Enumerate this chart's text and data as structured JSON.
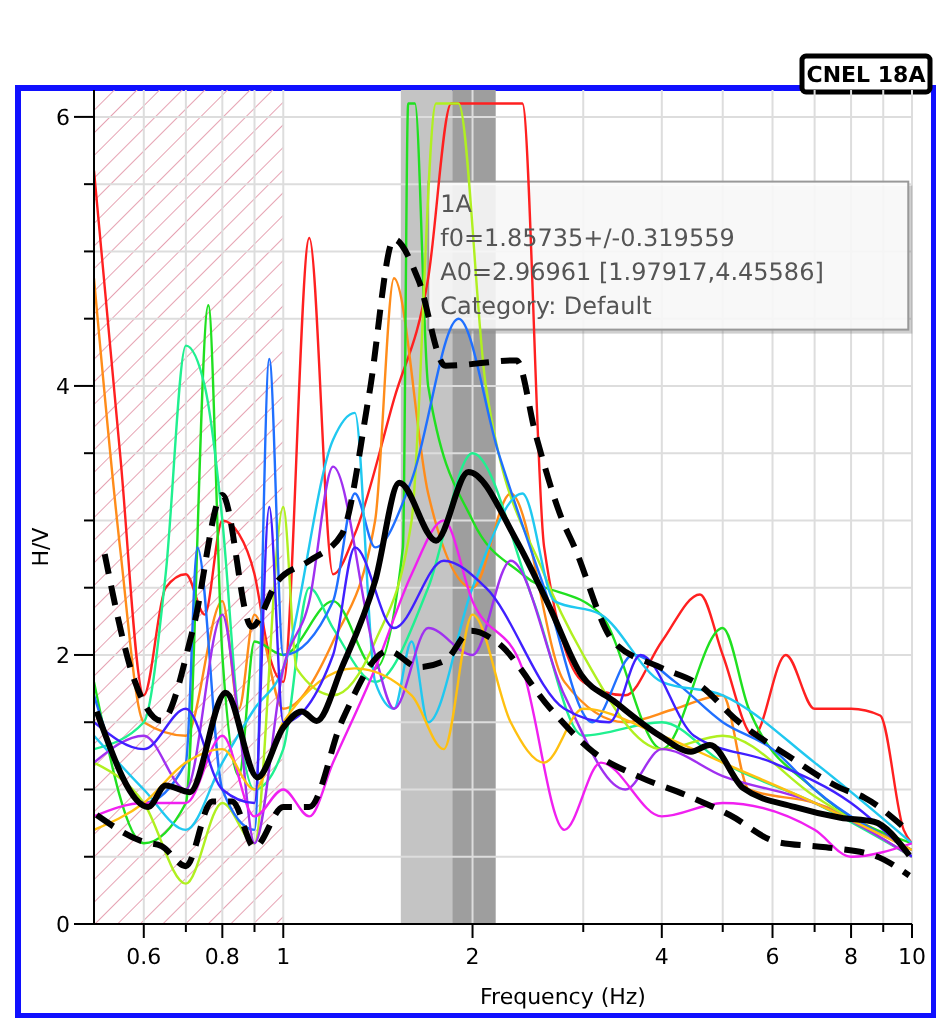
{
  "chart_data": {
    "type": "line",
    "title": "CNEL 18A",
    "xlabel": "Frequency (Hz)",
    "ylabel": "H/V",
    "log": "x",
    "grid": true,
    "xlim": [
      0.5,
      10
    ],
    "ylim": [
      0,
      6.2
    ],
    "xticks": [
      {
        "value": 0.6,
        "label": "0.6"
      },
      {
        "value": 0.7,
        "label": null
      },
      {
        "value": 0.8,
        "label": "0.8"
      },
      {
        "value": 0.9,
        "label": null
      },
      1,
      2,
      {
        "value": 3,
        "label": null
      },
      4,
      {
        "value": 5,
        "label": null
      },
      6,
      {
        "value": 7,
        "label": null
      },
      8,
      {
        "value": 9,
        "label": null
      },
      10
    ],
    "yticks": [
      0,
      {
        "value": 0.5,
        "label": null
      },
      {
        "value": 1,
        "label": null
      },
      {
        "value": 1.5,
        "label": null
      },
      2,
      {
        "value": 2.5,
        "label": null
      },
      {
        "value": 3,
        "label": null
      },
      {
        "value": 3.5,
        "label": null
      },
      4,
      {
        "value": 4.5,
        "label": null
      },
      {
        "value": 5,
        "label": null
      },
      {
        "value": 5.5,
        "label": null
      },
      6
    ],
    "bands": [
      {
        "axis": "x",
        "from": 0.5,
        "to": 1,
        "color": "#e6a3b3",
        "label": null
      },
      {
        "axis": "x",
        "from": 1.538,
        "to": 1.857,
        "color": "#c4c4c4",
        "label": null
      },
      {
        "axis": "x",
        "from": 1.857,
        "to": 2.177,
        "color": "#9e9e9e",
        "label": null
      }
    ],
    "annotations": [
      {
        "text": "1A",
        "x": 1.857,
        "y": 5.4
      },
      "f0=1.85735+/-0.319559",
      "A0=2.96961 [1.97917,4.45586]",
      "Category: Default"
    ],
    "series": [
      {
        "color": "#ff2020",
        "x": [
          0.5,
          0.55,
          0.6,
          0.65,
          0.7,
          0.75,
          0.8,
          0.85,
          0.9,
          0.95,
          1.0,
          1.1,
          1.2,
          1.3,
          1.5,
          1.7,
          1.85,
          2.4,
          2.6,
          3.0,
          3.5,
          4.0,
          4.6,
          5.0,
          5.6,
          6.3,
          7.0,
          8.0,
          8.9,
          9.7,
          10
        ],
        "values": [
          5.6,
          3.5,
          1.7,
          2.5,
          2.6,
          2.3,
          3.0,
          2.9,
          2.6,
          2.0,
          1.8,
          5.1,
          2.6,
          2.9,
          3.9,
          4.8,
          6.1,
          6.1,
          2.8,
          1.8,
          1.7,
          2.1,
          2.45,
          2.0,
          1.4,
          2.0,
          1.6,
          1.6,
          1.55,
          0.7,
          0.6
        ]
      },
      {
        "color": "#ff8c1a",
        "x": [
          0.5,
          0.55,
          0.6,
          0.7,
          0.8,
          0.85,
          0.9,
          1.0,
          1.2,
          1.4,
          1.5,
          1.7,
          2.0,
          2.3,
          2.8,
          3.5,
          4.2,
          5.0,
          5.5,
          7,
          10
        ],
        "values": [
          4.8,
          2.8,
          1.5,
          1.4,
          2.4,
          1.6,
          2.3,
          1.6,
          2.1,
          3.0,
          4.8,
          3.2,
          2.5,
          3.2,
          1.8,
          1.5,
          1.6,
          1.7,
          1.0,
          0.9,
          0.55
        ]
      },
      {
        "color": "#20e020",
        "x": [
          0.5,
          0.6,
          0.7,
          0.76,
          0.8,
          0.85,
          0.9,
          1.0,
          1.2,
          1.4,
          1.55,
          1.58,
          1.62,
          1.7,
          2.0,
          2.4,
          3.2,
          4,
          5,
          5.5,
          7,
          10
        ],
        "values": [
          1.8,
          0.6,
          0.9,
          4.6,
          2.0,
          1.1,
          2.1,
          2.0,
          2.4,
          1.9,
          2.8,
          6.1,
          6.1,
          4.0,
          3.0,
          2.6,
          2.3,
          1.3,
          2.2,
          1.6,
          1.0,
          0.6
        ]
      },
      {
        "color": "#20f090",
        "x": [
          0.5,
          0.6,
          0.65,
          0.7,
          0.75,
          0.8,
          0.85,
          0.9,
          1.0,
          1.1,
          1.2,
          1.4,
          1.7,
          2.0,
          2.5,
          3,
          4,
          5,
          7,
          10
        ],
        "values": [
          1.3,
          1.5,
          2.6,
          4.3,
          4.0,
          3.0,
          1.5,
          1.0,
          1.3,
          2.5,
          2.2,
          1.8,
          2.5,
          3.5,
          2.4,
          1.4,
          1.5,
          1.2,
          0.9,
          0.5
        ]
      },
      {
        "color": "#b0f020",
        "x": [
          0.5,
          0.6,
          0.7,
          0.8,
          0.9,
          1.0,
          1.05,
          1.2,
          1.4,
          1.6,
          1.75,
          1.9,
          2.1,
          2.6,
          3.0,
          4,
          5,
          7,
          10
        ],
        "values": [
          1.2,
          0.9,
          0.3,
          0.9,
          0.6,
          3.1,
          1.9,
          1.7,
          2.1,
          3.0,
          6.1,
          6.1,
          4.0,
          2.6,
          2.0,
          1.3,
          1.4,
          0.95,
          0.5
        ]
      },
      {
        "color": "#2070ff",
        "x": [
          0.5,
          0.6,
          0.7,
          0.73,
          0.8,
          0.9,
          0.95,
          1.0,
          1.2,
          1.3,
          1.4,
          1.6,
          1.9,
          2.2,
          2.6,
          3.1,
          3.6,
          4.2,
          5,
          6,
          7,
          10
        ],
        "values": [
          1.7,
          0.9,
          1.2,
          2.8,
          1.0,
          0.7,
          4.2,
          2.0,
          2.4,
          3.2,
          2.8,
          3.3,
          4.5,
          3.5,
          2.5,
          1.5,
          2.0,
          1.8,
          1.5,
          1.3,
          1.0,
          0.55
        ]
      },
      {
        "color": "#20c8f0",
        "x": [
          0.5,
          0.6,
          0.7,
          0.8,
          0.9,
          1.0,
          1.2,
          1.3,
          1.4,
          1.5,
          1.6,
          1.7,
          2.0,
          2.4,
          2.7,
          3.2,
          4,
          5,
          7,
          10
        ],
        "values": [
          1.4,
          1.0,
          0.7,
          1.2,
          1.6,
          1.9,
          3.6,
          3.8,
          1.8,
          1.6,
          2.1,
          1.5,
          2.5,
          3.2,
          2.4,
          2.3,
          1.8,
          1.7,
          1.2,
          0.6
        ]
      },
      {
        "color": "#a030f0",
        "x": [
          0.5,
          0.6,
          0.7,
          0.8,
          0.85,
          0.9,
          1.0,
          1.1,
          1.2,
          1.4,
          1.5,
          1.7,
          2.0,
          2.3,
          2.8,
          3.5,
          4,
          5,
          7,
          10
        ],
        "values": [
          1.2,
          1.4,
          1.0,
          2.3,
          1.5,
          0.6,
          1.9,
          2.4,
          3.4,
          2.0,
          1.6,
          2.2,
          2.0,
          2.7,
          1.7,
          1.0,
          1.3,
          1.1,
          0.9,
          0.5
        ]
      },
      {
        "color": "#f020f0",
        "x": [
          0.5,
          0.6,
          0.7,
          0.8,
          0.9,
          1.0,
          1.1,
          1.2,
          1.4,
          1.6,
          1.8,
          2.0,
          2.4,
          2.8,
          3.2,
          4,
          5,
          7,
          8,
          10
        ],
        "values": [
          0.8,
          0.9,
          0.9,
          1.4,
          0.8,
          1.0,
          0.8,
          1.2,
          1.9,
          2.6,
          3.0,
          2.4,
          1.9,
          0.7,
          1.2,
          0.8,
          0.9,
          0.7,
          0.5,
          0.6
        ]
      },
      {
        "color": "#ffc010",
        "x": [
          0.5,
          0.6,
          0.7,
          0.8,
          0.9,
          1.0,
          1.3,
          1.6,
          1.8,
          2.0,
          2.3,
          2.6,
          3.0,
          4,
          5,
          7,
          10
        ],
        "values": [
          0.7,
          0.9,
          1.2,
          1.3,
          1.0,
          1.5,
          1.9,
          1.7,
          1.3,
          2.3,
          1.5,
          1.2,
          1.6,
          1.4,
          1.2,
          0.9,
          0.55
        ]
      },
      {
        "color": "#4020ff",
        "x": [
          0.5,
          0.6,
          0.7,
          0.8,
          0.9,
          0.95,
          1.0,
          1.2,
          1.3,
          1.5,
          1.8,
          2.1,
          2.8,
          3.3,
          3.7,
          4.5,
          6,
          8,
          10
        ],
        "values": [
          1.5,
          1.3,
          1.6,
          1.0,
          0.9,
          3.1,
          1.5,
          2.0,
          2.8,
          2.2,
          2.7,
          2.5,
          1.6,
          1.5,
          2.0,
          1.4,
          1.2,
          0.9,
          0.5
        ]
      },
      {
        "color": "#000000",
        "line_style": "dashed",
        "x": [
          0.52,
          0.58,
          0.64,
          0.72,
          0.8,
          0.89,
          0.98,
          1.1,
          1.24,
          1.37,
          1.5,
          1.64,
          1.81,
          2.35,
          2.52,
          2.78,
          2.9,
          3.35,
          3.97,
          4.58,
          5.28,
          6.35,
          7.7,
          8.4,
          9.7
        ],
        "values": [
          2.75,
          1.81,
          1.51,
          2.21,
          3.19,
          2.21,
          2.55,
          2.7,
          2.9,
          3.94,
          5.09,
          4.79,
          4.15,
          4.19,
          3.64,
          3.0,
          2.81,
          2.1,
          1.91,
          1.78,
          1.51,
          1.25,
          1.01,
          0.94,
          0.72
        ]
      },
      {
        "color": "#000000",
        "line_style": "solid",
        "x": [
          0.505,
          0.61,
          0.65,
          0.71,
          0.81,
          0.91,
          1.0,
          1.07,
          1.13,
          1.24,
          1.4,
          1.53,
          1.75,
          1.97,
          2.35,
          2.65,
          2.98,
          3.35,
          3.97,
          4.45,
          4.77,
          5.39,
          6.5,
          7.7,
          8.7,
          9.9
        ],
        "values": [
          1.58,
          0.87,
          1.03,
          0.98,
          1.72,
          1.09,
          1.46,
          1.58,
          1.51,
          1.91,
          2.55,
          3.28,
          2.85,
          3.36,
          2.85,
          2.36,
          1.85,
          1.66,
          1.4,
          1.28,
          1.33,
          1.01,
          0.87,
          0.79,
          0.76,
          0.51
        ]
      },
      {
        "color": "#000000",
        "line_style": "dashed",
        "x": [
          0.505,
          0.6,
          0.64,
          0.7,
          0.77,
          0.83,
          0.9,
          1.0,
          1.1,
          1.24,
          1.47,
          1.64,
          1.81,
          1.99,
          2.18,
          2.65,
          3.11,
          3.7,
          4.36,
          5.13,
          6.1,
          7.3,
          8.7,
          9.9
        ],
        "values": [
          0.81,
          0.61,
          0.58,
          0.43,
          0.91,
          0.91,
          0.57,
          0.87,
          0.87,
          1.51,
          2.03,
          1.91,
          1.96,
          2.18,
          2.1,
          1.61,
          1.28,
          1.09,
          0.96,
          0.81,
          0.61,
          0.57,
          0.51,
          0.36
        ]
      }
    ]
  }
}
